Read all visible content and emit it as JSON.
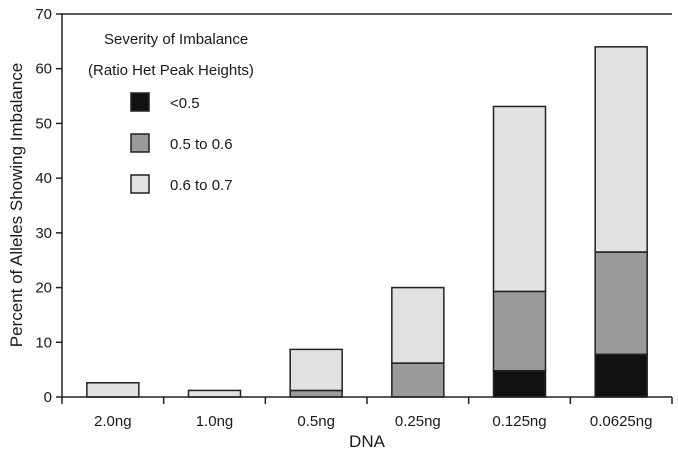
{
  "chart_data": {
    "type": "bar",
    "stacked": true,
    "title": "",
    "xlabel": "DNA",
    "ylabel": "Percent of Alleles Showing Imbalance",
    "ylim": [
      0,
      70
    ],
    "yticks": [
      "0",
      "10",
      "20",
      "30",
      "40",
      "50",
      "60",
      "70"
    ],
    "categories": [
      "2.0ng",
      "1.0ng",
      "0.5ng",
      "0.25ng",
      "0.125ng",
      "0.0625ng"
    ],
    "series": [
      {
        "name": "<0.5",
        "color": "#111111",
        "values": [
          0,
          0,
          0,
          0,
          4.8,
          7.8
        ]
      },
      {
        "name": "0.5 to 0.6",
        "color": "#9a9a9a",
        "values": [
          0,
          0,
          1.2,
          6.2,
          14.5,
          18.7
        ]
      },
      {
        "name": "0.6 to 0.7",
        "color": "#e2e2e2",
        "values": [
          2.6,
          1.2,
          7.5,
          13.8,
          33.8,
          37.5
        ]
      }
    ],
    "legend": {
      "title_line1": "Severity of Imbalance",
      "title_line2": "(Ratio Het Peak Heights)",
      "placement": "top-left"
    },
    "grid": false
  }
}
